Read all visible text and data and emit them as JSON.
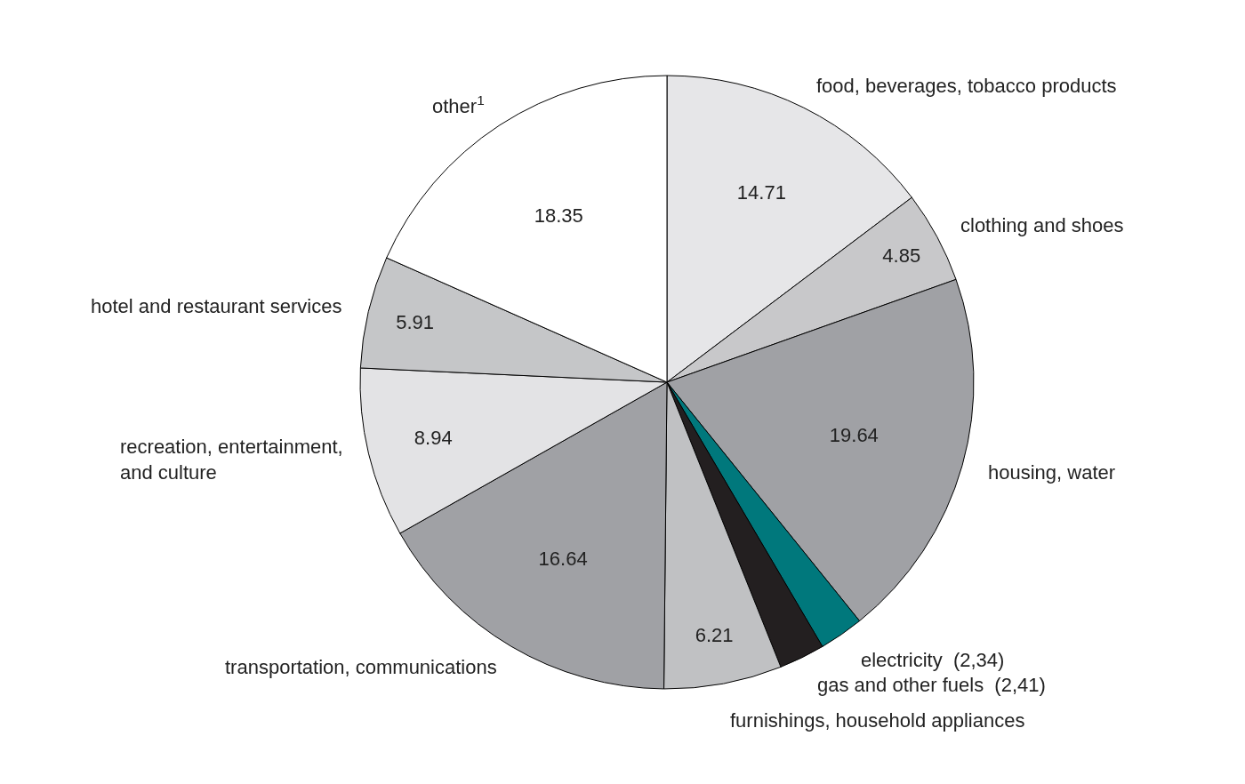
{
  "chart_data": {
    "type": "pie",
    "categories": [
      "food, beverages, tobacco products",
      "clothing and shoes",
      "housing, water",
      "electricity",
      "gas and other fuels",
      "furnishings, household appliances",
      "transportation, communications",
      "recreation, entertainment,\nand culture",
      "hotel and restaurant services",
      "other$^{1}$"
    ],
    "values": [
      14.71,
      4.85,
      19.64,
      2.34,
      2.41,
      6.21,
      16.64,
      8.94,
      5.91,
      18.35
    ],
    "value_labels": [
      "14.71",
      "4.85",
      "19.64",
      "(2,34)",
      "(2,41)",
      "6.21",
      "16.64",
      "8.94",
      "5.91",
      "18.35"
    ],
    "colors": [
      "#e6e6e8",
      "#c8c8ca",
      "#a0a1a5",
      "#00787c",
      "#231f20",
      "#c0c1c3",
      "#a0a1a5",
      "#e3e3e5",
      "#c5c6c8",
      "#ffffff"
    ],
    "legend": false
  }
}
